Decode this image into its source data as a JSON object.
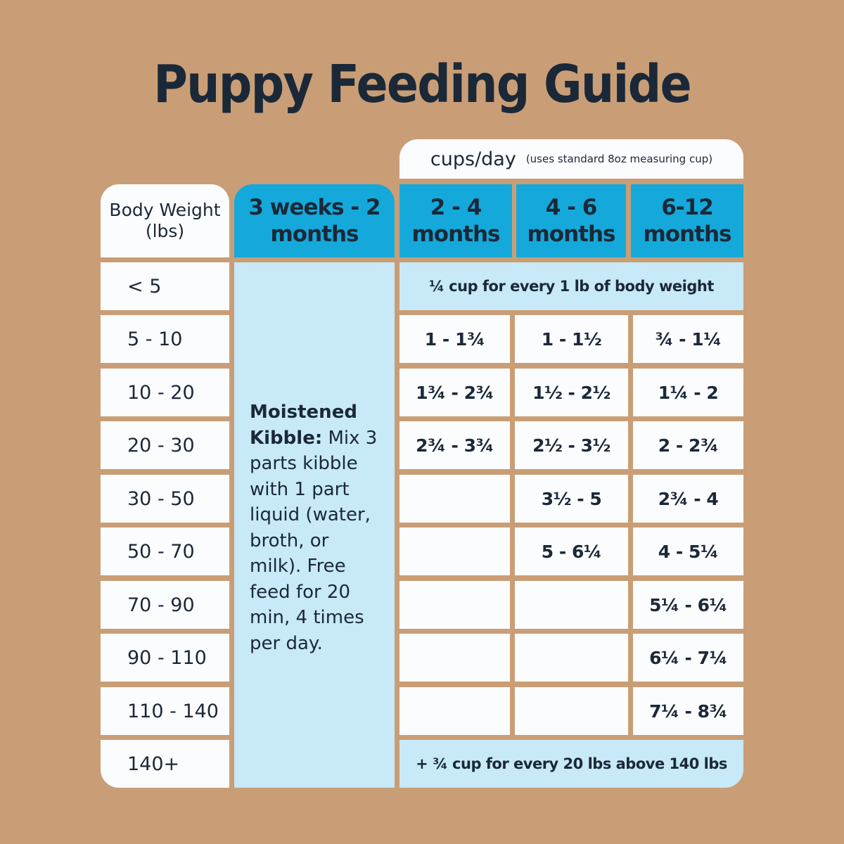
{
  "title": "Puppy Feeding Guide",
  "units": {
    "label": "cups/day",
    "note": "(uses standard 8oz measuring cup)"
  },
  "headers": {
    "weight": "Body Weight (lbs)",
    "age0": "3 weeks - 2 months",
    "ages": [
      "2 - 4 months",
      "4 - 6 months",
      "6-12 months"
    ]
  },
  "kibble": {
    "bold": "Moistened Kibble:",
    "text": " Mix 3 parts kibble with 1 part liquid (water, broth, or milk). Free feed for 20 min, 4 times per day."
  },
  "row_first_span": "¼ cup for every 1 lb of body weight",
  "row_last_span": "+ ¾ cup for every 20 lbs above 140 lbs",
  "weights": [
    "< 5",
    "5 - 10",
    "10 - 20",
    "20 - 30",
    "30 - 50",
    "50 - 70",
    "70 - 90",
    "90 - 110",
    "110 - 140",
    "140+"
  ],
  "rows": [
    [
      "1 - 1¾",
      "1 - 1½",
      "¾ - 1¼"
    ],
    [
      "1¾ - 2¾",
      "1½ - 2½",
      "1¼ - 2"
    ],
    [
      "2¾ - 3¾",
      "2½ - 3½",
      "2 - 2¾"
    ],
    [
      "",
      "3½ - 5",
      "2¾ - 4"
    ],
    [
      "",
      "5 - 6¼",
      "4 - 5¼"
    ],
    [
      "",
      "",
      "5¼ - 6¼"
    ],
    [
      "",
      "",
      "6¼ - 7¼"
    ],
    [
      "",
      "",
      "7¼ - 8¾"
    ]
  ],
  "colors": {
    "background": "#c99e76",
    "header_blue": "#14a9da",
    "light_blue": "#c7e9f8",
    "text": "#1b2838"
  }
}
